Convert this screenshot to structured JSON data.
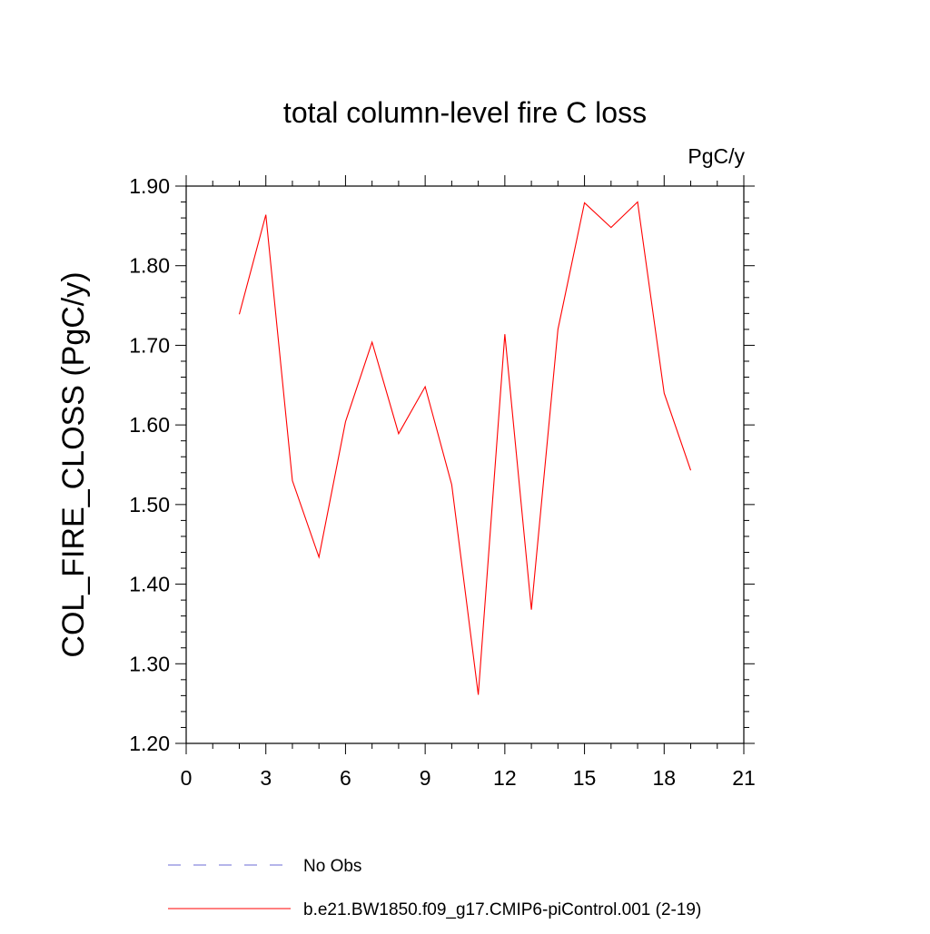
{
  "chart_data": {
    "type": "line",
    "title": "total column-level fire C loss",
    "units_label": "PgC/y",
    "ylabel": "COL_FIRE_CLOSS  (PgC/y)",
    "xlabel": "",
    "xlim": [
      0,
      21
    ],
    "ylim": [
      1.2,
      1.9
    ],
    "x_ticks": [
      "0",
      "3",
      "6",
      "9",
      "12",
      "15",
      "18",
      "21"
    ],
    "y_ticks": [
      "1.20",
      "1.30",
      "1.40",
      "1.50",
      "1.60",
      "1.70",
      "1.80",
      "1.90"
    ],
    "grid": false,
    "legend_placement": "bottom",
    "series": [
      {
        "name": "No Obs",
        "color": "#6b6bd6",
        "style": "dashed",
        "x": [],
        "values": []
      },
      {
        "name": "b.e21.BW1850.f09_g17.CMIP6-piControl.001 (2-19)",
        "color": "#ff0000",
        "style": "solid",
        "x": [
          2,
          3,
          4,
          5,
          6,
          7,
          8,
          9,
          10,
          11,
          12,
          13,
          14,
          15,
          16,
          17,
          18,
          19
        ],
        "values": [
          1.739,
          1.864,
          1.53,
          1.434,
          1.604,
          1.704,
          1.589,
          1.648,
          1.525,
          1.261,
          1.714,
          1.368,
          1.72,
          1.879,
          1.848,
          1.88,
          1.64,
          1.543
        ]
      }
    ]
  }
}
